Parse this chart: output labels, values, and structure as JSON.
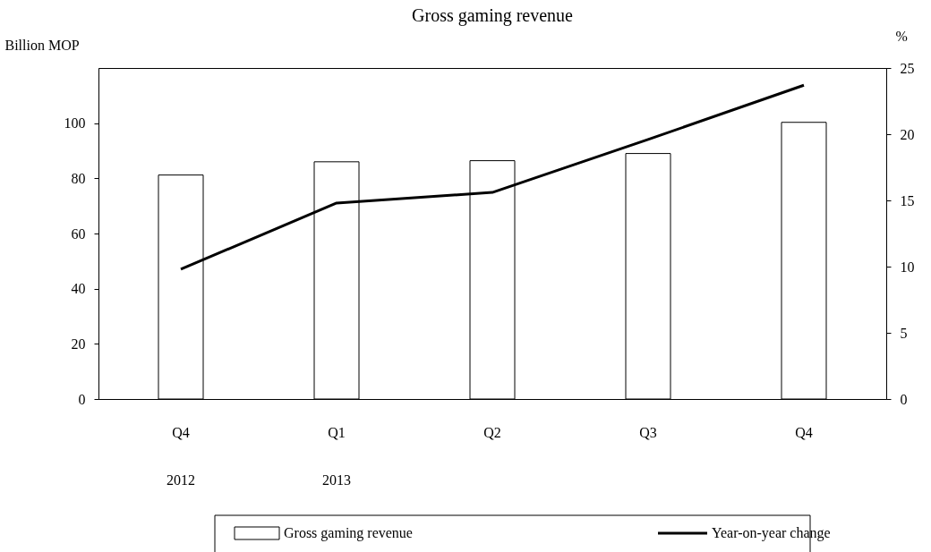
{
  "chart_data": {
    "type": "bar",
    "title": "Gross gaming revenue",
    "ylabel": "Billion MOP",
    "y2label": "%",
    "categories": [
      "Q4\n2012",
      "Q1\n2013",
      "Q2",
      "Q3",
      "Q4"
    ],
    "series": [
      {
        "name": "Gross gaming revenue",
        "color": "#ffffff",
        "values": [
          81.2,
          86,
          86.4,
          89,
          100.3
        ]
      },
      {
        "name": "Year-on-year change",
        "type": "line",
        "axis": "y2",
        "color": "#000000",
        "values": [
          9.8,
          14.8,
          15.6,
          19.6,
          23.7
        ]
      }
    ],
    "ylim": [
      0,
      120
    ],
    "yticks": [
      0,
      20,
      40,
      60,
      80,
      100
    ],
    "y2lim": [
      0,
      25
    ],
    "y2ticks": [
      0,
      5,
      10,
      15,
      20,
      25
    ],
    "grid": false,
    "legend": "bottom"
  }
}
